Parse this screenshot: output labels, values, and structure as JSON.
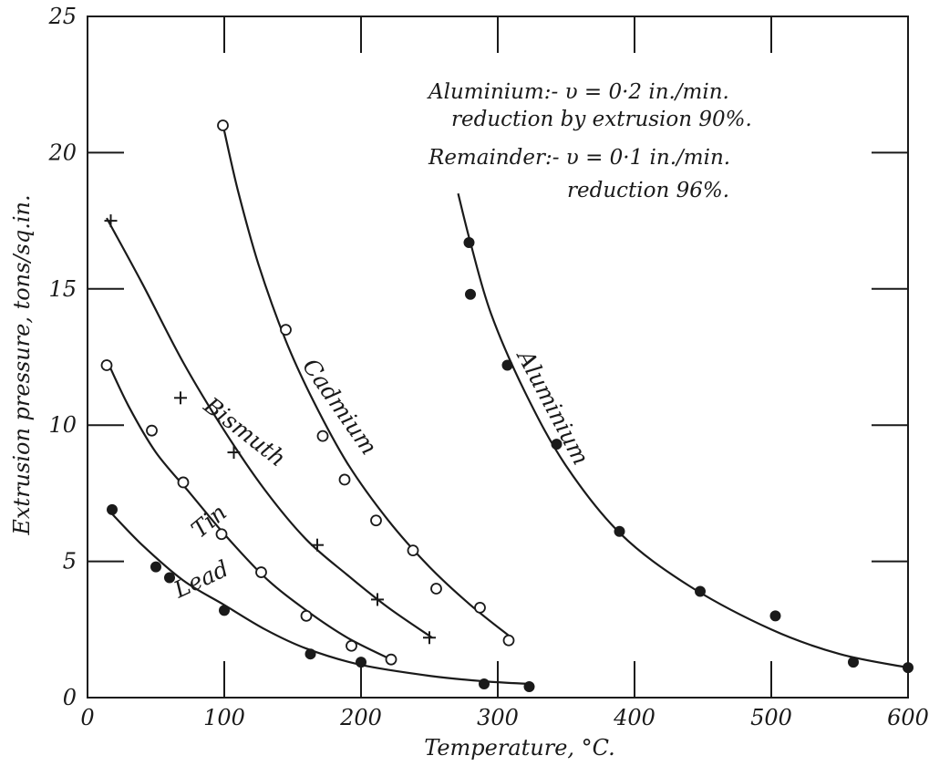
{
  "chart_data": {
    "type": "scatter",
    "xlabel": "Temperature, °C.",
    "ylabel": "Extrusion pressure, tons/sq.in.",
    "xlim": [
      0,
      600
    ],
    "ylim": [
      0,
      25
    ],
    "x_ticks": [
      "0",
      "100",
      "200",
      "300",
      "400",
      "500",
      "600"
    ],
    "y_ticks": [
      "0",
      "5",
      "10",
      "15",
      "20",
      "25"
    ],
    "grid": false,
    "annotations": [
      "Aluminium:- υ = 0·2 in./min.",
      "reduction by extrusion 90%.",
      "Remainder:- υ = 0·1 in./min.",
      "reduction 96%."
    ],
    "series": [
      {
        "name": "Lead",
        "marker": "filled-circle",
        "points": [
          [
            18,
            6.9
          ],
          [
            50,
            4.8
          ],
          [
            60,
            4.4
          ],
          [
            100,
            3.2
          ],
          [
            163,
            1.6
          ],
          [
            200,
            1.3
          ],
          [
            290,
            0.5
          ],
          [
            323,
            0.4
          ]
        ],
        "curve": [
          [
            15,
            6.9
          ],
          [
            40,
            5.6
          ],
          [
            70,
            4.3
          ],
          [
            100,
            3.4
          ],
          [
            130,
            2.5
          ],
          [
            160,
            1.8
          ],
          [
            200,
            1.2
          ],
          [
            250,
            0.8
          ],
          [
            290,
            0.6
          ],
          [
            325,
            0.5
          ]
        ]
      },
      {
        "name": "Tin",
        "marker": "open-circle",
        "points": [
          [
            14,
            12.2
          ],
          [
            47,
            9.8
          ],
          [
            70,
            7.9
          ],
          [
            98,
            6.0
          ],
          [
            127,
            4.6
          ],
          [
            160,
            3.0
          ],
          [
            193,
            1.9
          ],
          [
            222,
            1.4
          ]
        ],
        "curve": [
          [
            14,
            12.4
          ],
          [
            30,
            10.7
          ],
          [
            50,
            9.0
          ],
          [
            75,
            7.5
          ],
          [
            100,
            6.0
          ],
          [
            130,
            4.4
          ],
          [
            160,
            3.2
          ],
          [
            190,
            2.2
          ],
          [
            222,
            1.4
          ]
        ]
      },
      {
        "name": "Bismuth",
        "marker": "plus",
        "points": [
          [
            17,
            17.5
          ],
          [
            68,
            11.0
          ],
          [
            107,
            9.0
          ],
          [
            168,
            5.6
          ],
          [
            212,
            3.6
          ],
          [
            250,
            2.2
          ]
        ],
        "curve": [
          [
            14,
            17.6
          ],
          [
            40,
            15.2
          ],
          [
            70,
            12.3
          ],
          [
            100,
            9.8
          ],
          [
            130,
            7.6
          ],
          [
            160,
            5.8
          ],
          [
            190,
            4.5
          ],
          [
            220,
            3.3
          ],
          [
            252,
            2.2
          ]
        ]
      },
      {
        "name": "Cadmium",
        "marker": "open-circle",
        "points": [
          [
            99,
            21.0
          ],
          [
            145,
            13.5
          ],
          [
            172,
            9.6
          ],
          [
            188,
            8.0
          ],
          [
            211,
            6.5
          ],
          [
            238,
            5.4
          ],
          [
            255,
            4.0
          ],
          [
            287,
            3.3
          ],
          [
            308,
            2.1
          ]
        ],
        "curve": [
          [
            100,
            20.8
          ],
          [
            110,
            18.6
          ],
          [
            125,
            15.9
          ],
          [
            145,
            13.1
          ],
          [
            165,
            10.9
          ],
          [
            190,
            8.6
          ],
          [
            220,
            6.5
          ],
          [
            250,
            4.8
          ],
          [
            280,
            3.4
          ],
          [
            310,
            2.2
          ]
        ]
      },
      {
        "name": "Aluminium",
        "marker": "filled-circle",
        "points": [
          [
            279,
            16.7
          ],
          [
            280,
            14.8
          ],
          [
            307,
            12.2
          ],
          [
            343,
            9.3
          ],
          [
            389,
            6.1
          ],
          [
            448,
            3.9
          ],
          [
            503,
            3.0
          ],
          [
            560,
            1.3
          ],
          [
            600,
            1.1
          ]
        ],
        "curve": [
          [
            271,
            18.5
          ],
          [
            280,
            16.7
          ],
          [
            295,
            14.1
          ],
          [
            320,
            11.2
          ],
          [
            350,
            8.5
          ],
          [
            390,
            6.0
          ],
          [
            440,
            4.1
          ],
          [
            500,
            2.5
          ],
          [
            550,
            1.6
          ],
          [
            600,
            1.1
          ]
        ]
      }
    ]
  }
}
